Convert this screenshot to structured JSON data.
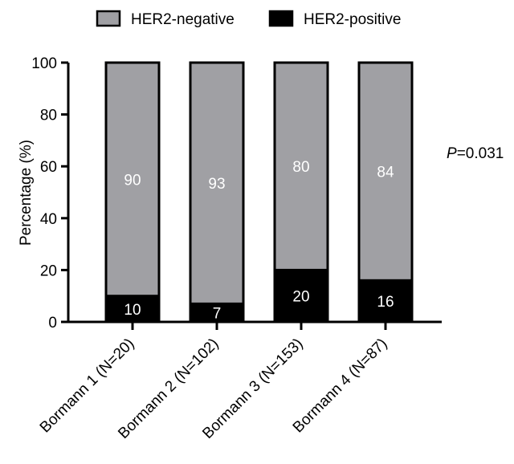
{
  "chart_data": {
    "type": "bar",
    "stacked": true,
    "categories": [
      "Bormann 1 (N=20)",
      "Bormann 2 (N=102)",
      "Bormann 3 (N=153)",
      "Bormann 4 (N=87)"
    ],
    "series": [
      {
        "name": "HER2-positive",
        "values": [
          10,
          7,
          20,
          16
        ],
        "color": "#000000",
        "label_color": "#ffffff"
      },
      {
        "name": "HER2-negative",
        "values": [
          90,
          93,
          80,
          84
        ],
        "color": "#a0a0a4",
        "label_color": "#ffffff"
      }
    ],
    "legend_order": [
      "HER2-negative",
      "HER2-positive"
    ],
    "legend_position": "top",
    "title": "",
    "xlabel": "",
    "ylabel": "Percentage (%)",
    "ylim": [
      0,
      100
    ],
    "yticks": [
      0,
      20,
      40,
      60,
      80,
      100
    ],
    "grid": false
  },
  "annotation": {
    "p_label": "P",
    "p_value": "=0.031"
  }
}
